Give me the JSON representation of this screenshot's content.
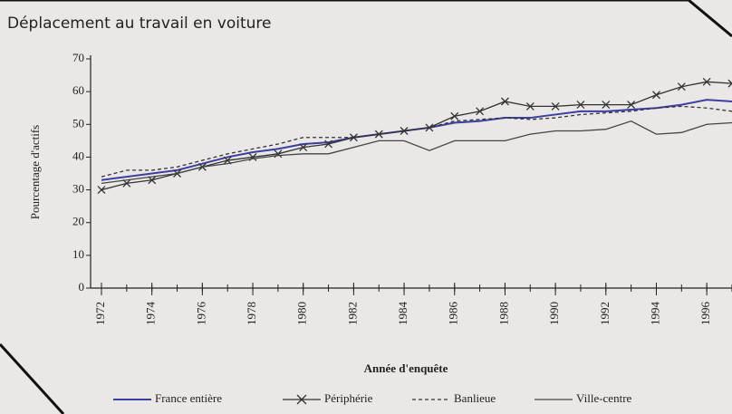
{
  "chart_data": {
    "type": "line",
    "title": "Déplacement au travail en voiture",
    "y_label": "Pourcentage d'actifs",
    "x_label": "Année d'enquête",
    "x": [
      1972,
      1973,
      1974,
      1975,
      1976,
      1977,
      1978,
      1979,
      1980,
      1981,
      1982,
      1983,
      1984,
      1985,
      1986,
      1987,
      1988,
      1989,
      1990,
      1991,
      1992,
      1993,
      1994,
      1995,
      1996,
      1997
    ],
    "series": [
      {
        "name": "France entière",
        "color": "#3b3fa2",
        "style": "solid",
        "marker": "none",
        "values": [
          33,
          34,
          35,
          36,
          38,
          40,
          41.5,
          42.5,
          44,
          44.5,
          46,
          47,
          48,
          49,
          50.5,
          51,
          52,
          52,
          53,
          54,
          54,
          54.5,
          55,
          56,
          57.5,
          57
        ]
      },
      {
        "name": "Périphérie",
        "color": "#333333",
        "style": "solid",
        "marker": "x",
        "values": [
          30,
          32,
          33,
          35,
          37,
          39,
          40,
          41,
          43,
          44,
          46,
          47,
          48,
          49,
          52.5,
          54,
          57,
          55.5,
          55.5,
          56,
          56,
          56,
          59,
          61.5,
          63,
          62.5
        ]
      },
      {
        "name": "Banlieue",
        "color": "#333333",
        "style": "dashed",
        "marker": "none",
        "values": [
          34,
          36,
          36,
          37,
          39,
          41,
          42.5,
          44,
          46,
          46,
          46,
          47,
          48,
          49,
          51,
          51.5,
          52,
          51.5,
          52,
          53,
          53.5,
          54,
          55,
          55.5,
          55,
          54
        ]
      },
      {
        "name": "Ville-centre",
        "color": "#444444",
        "style": "solid",
        "marker": "none",
        "values": [
          32,
          33,
          34,
          35,
          37,
          38,
          39.5,
          40.5,
          41,
          41,
          43,
          45,
          45,
          42,
          45,
          45,
          45,
          47,
          48,
          48,
          48.5,
          51,
          47,
          47.5,
          50,
          50.5
        ]
      }
    ],
    "xlim": [
      1972,
      1997
    ],
    "xticks": [
      1972,
      1974,
      1976,
      1978,
      1980,
      1982,
      1984,
      1986,
      1988,
      1990,
      1992,
      1994,
      1996
    ],
    "ylim": [
      0,
      70
    ],
    "yticks": [
      0,
      10,
      20,
      30,
      40,
      50,
      60,
      70
    ],
    "legend": "bottom"
  }
}
